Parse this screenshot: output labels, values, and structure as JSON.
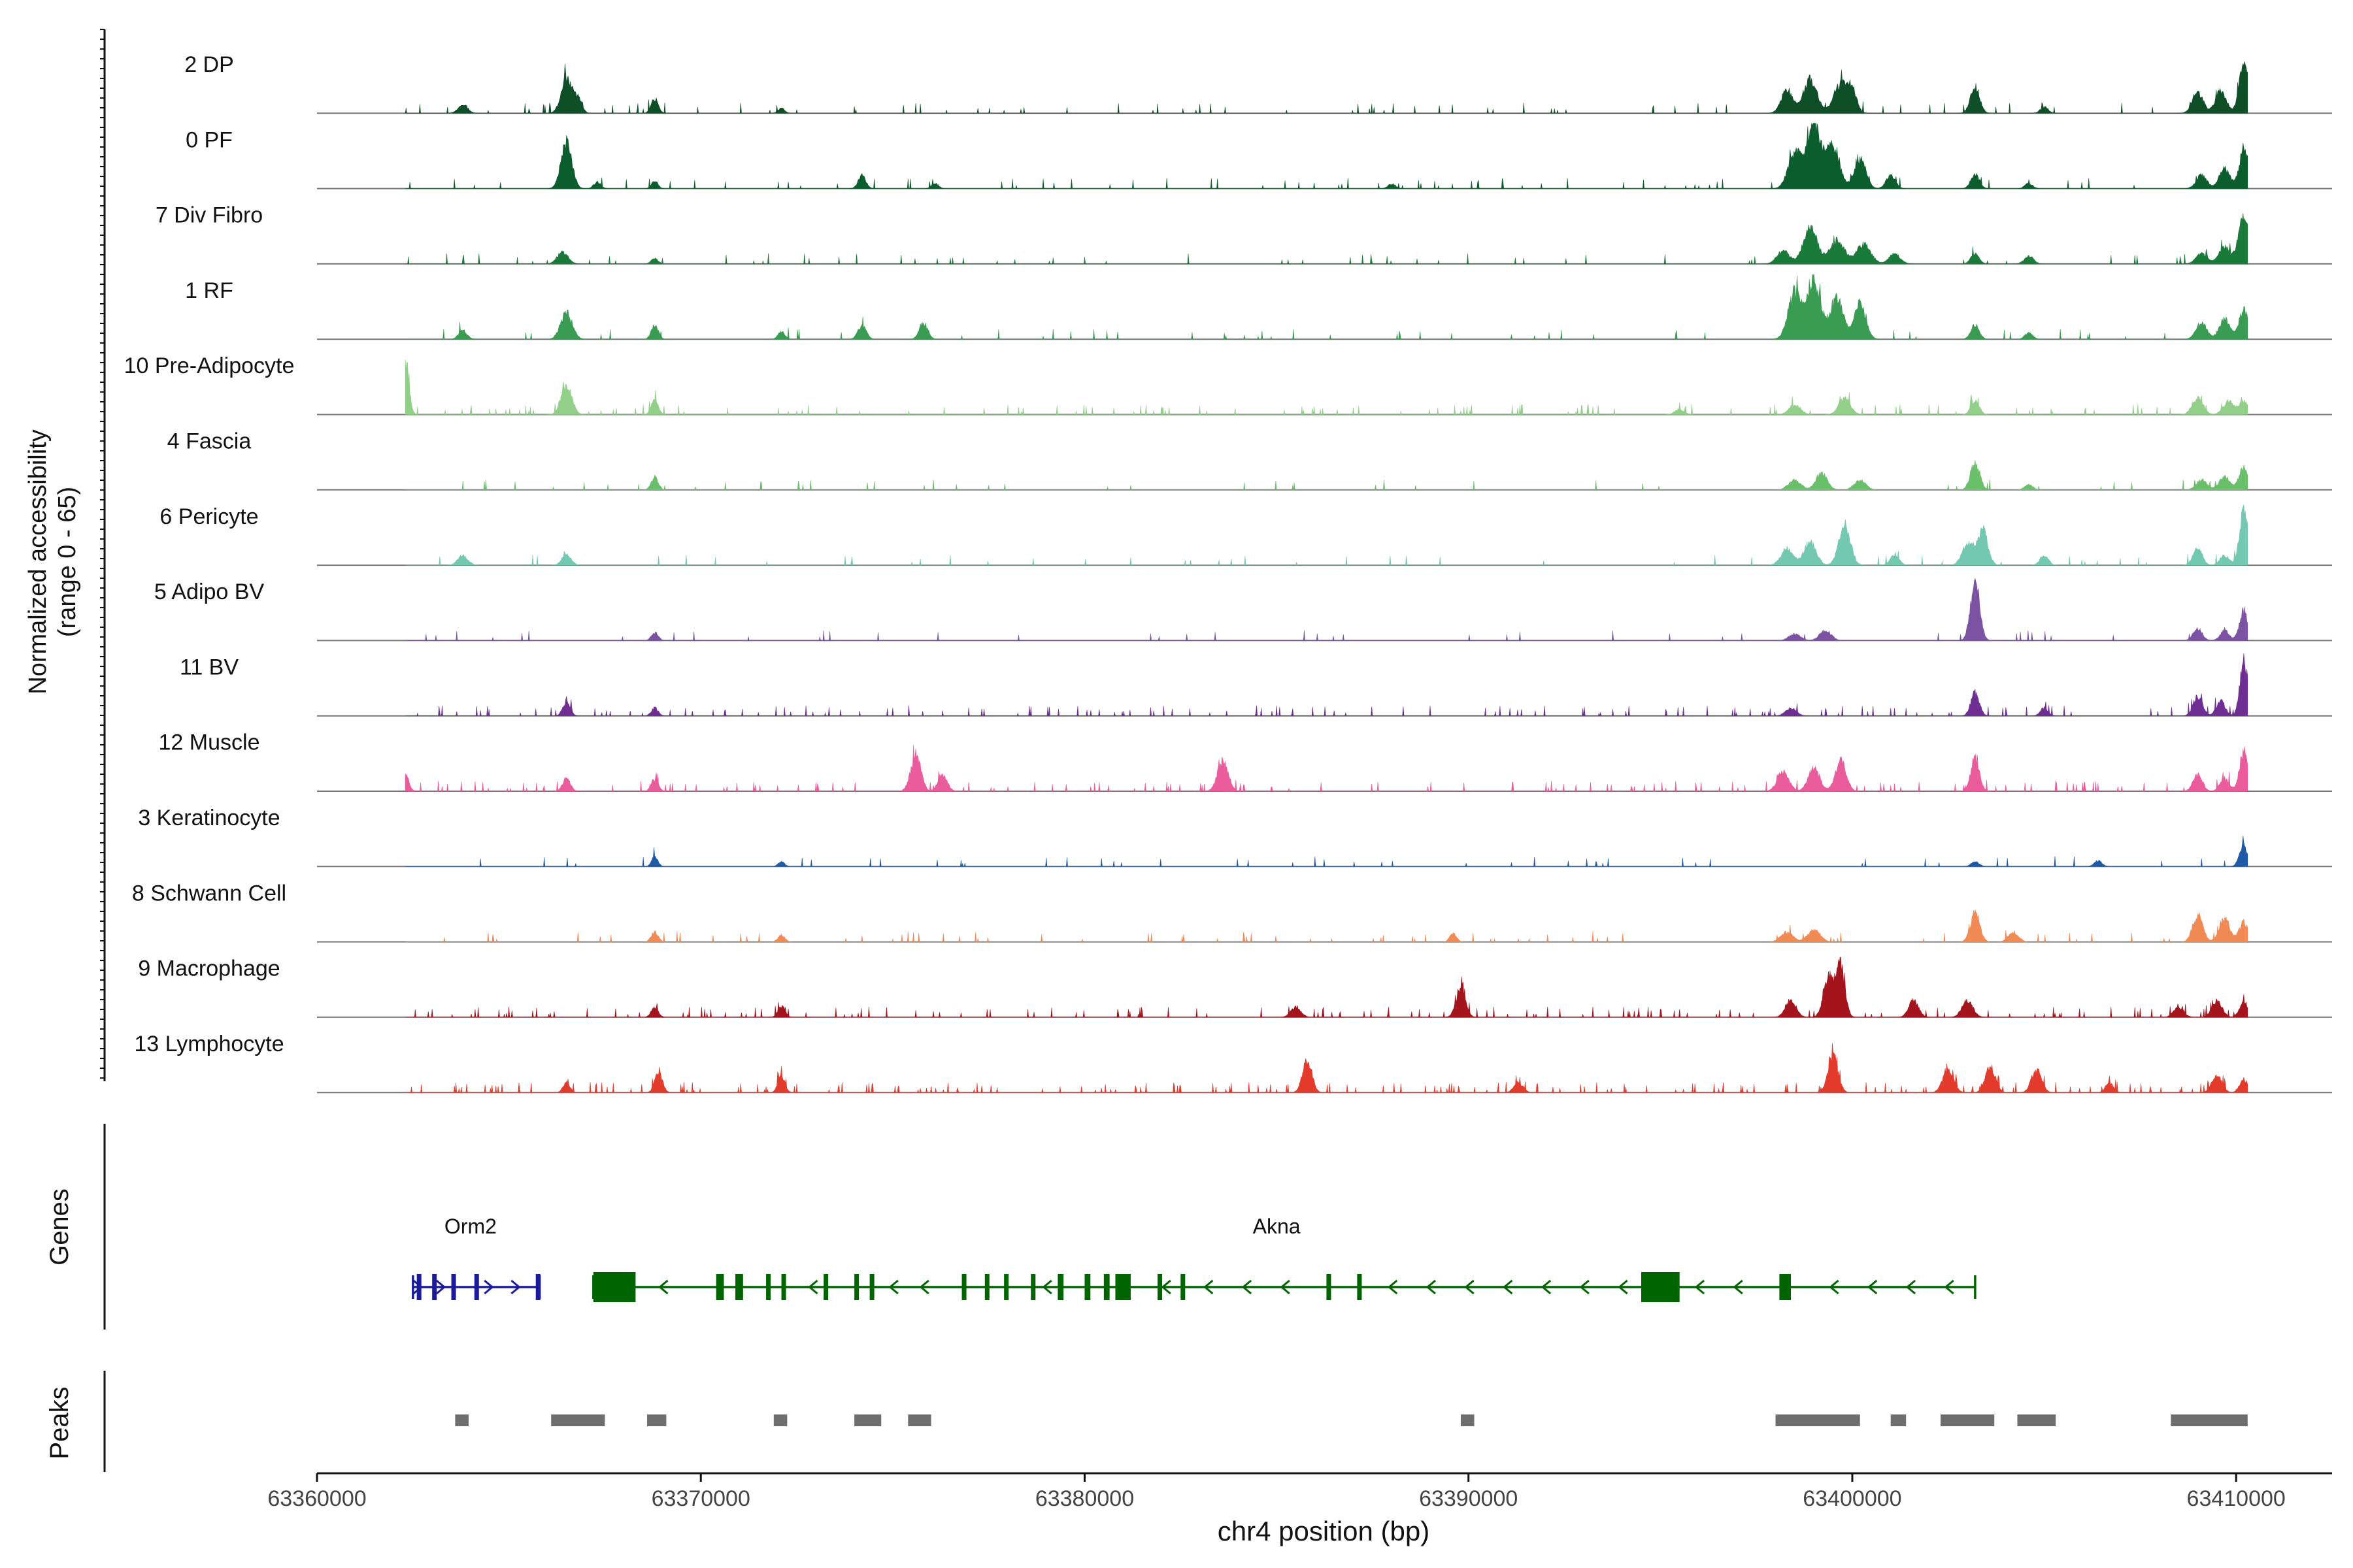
{
  "chart_data": {
    "type": "area",
    "title": "",
    "xlabel": "chr4 position (bp)",
    "ylabel_line1": "Normalized accessibility",
    "ylabel_line2": "(range 0 - 65)",
    "ylim": [
      0,
      65
    ],
    "xlim": [
      63360000,
      63412500
    ],
    "xticks": [
      63360000,
      63370000,
      63380000,
      63390000,
      63400000,
      63410000
    ],
    "xtick_labels": [
      "63360000",
      "63370000",
      "63380000",
      "63390000",
      "63400000",
      "63410000"
    ],
    "track_start": 63362300,
    "track_end": 63410300,
    "series": [
      {
        "name": "2 DP",
        "color": "#0f4f28",
        "noise": 0.035,
        "peaks": [
          [
            63363800,
            0.14,
            120
          ],
          [
            63366500,
            0.55,
            140
          ],
          [
            63366800,
            0.2,
            100
          ],
          [
            63368800,
            0.22,
            90
          ],
          [
            63372100,
            0.08,
            80
          ],
          [
            63398300,
            0.35,
            150
          ],
          [
            63398900,
            0.5,
            180
          ],
          [
            63399700,
            0.45,
            180
          ],
          [
            63400000,
            0.3,
            120
          ],
          [
            63403200,
            0.4,
            120
          ],
          [
            63405000,
            0.1,
            100
          ],
          [
            63409000,
            0.32,
            140
          ],
          [
            63409600,
            0.35,
            140
          ],
          [
            63410200,
            0.75,
            120
          ]
        ]
      },
      {
        "name": "0 PF",
        "color": "#0b5d2d",
        "noise": 0.03,
        "peaks": [
          [
            63366500,
            0.7,
            140
          ],
          [
            63367300,
            0.1,
            90
          ],
          [
            63368800,
            0.12,
            80
          ],
          [
            63374200,
            0.2,
            100
          ],
          [
            63376100,
            0.08,
            90
          ],
          [
            63388000,
            0.07,
            100
          ],
          [
            63398500,
            0.55,
            170
          ],
          [
            63399000,
            1.0,
            180
          ],
          [
            63399500,
            0.65,
            170
          ],
          [
            63400200,
            0.45,
            150
          ],
          [
            63401000,
            0.2,
            120
          ],
          [
            63403200,
            0.22,
            110
          ],
          [
            63404600,
            0.08,
            100
          ],
          [
            63409100,
            0.2,
            140
          ],
          [
            63409700,
            0.3,
            140
          ],
          [
            63410200,
            0.6,
            120
          ]
        ]
      },
      {
        "name": "7 Div Fibro",
        "color": "#1a7a3a",
        "noise": 0.035,
        "peaks": [
          [
            63366400,
            0.18,
            140
          ],
          [
            63368800,
            0.08,
            90
          ],
          [
            63398200,
            0.2,
            160
          ],
          [
            63398900,
            0.55,
            180
          ],
          [
            63399600,
            0.35,
            200
          ],
          [
            63400300,
            0.3,
            180
          ],
          [
            63401100,
            0.15,
            150
          ],
          [
            63403200,
            0.15,
            110
          ],
          [
            63404600,
            0.12,
            120
          ],
          [
            63409100,
            0.15,
            150
          ],
          [
            63409700,
            0.25,
            150
          ],
          [
            63410200,
            0.7,
            140
          ]
        ]
      },
      {
        "name": "1 RF",
        "color": "#3a9b52",
        "noise": 0.03,
        "peaks": [
          [
            63363800,
            0.13,
            110
          ],
          [
            63366500,
            0.4,
            150
          ],
          [
            63368800,
            0.22,
            90
          ],
          [
            63372100,
            0.12,
            90
          ],
          [
            63374200,
            0.2,
            110
          ],
          [
            63375800,
            0.25,
            110
          ],
          [
            63398500,
            0.7,
            170
          ],
          [
            63399000,
            0.85,
            180
          ],
          [
            63399600,
            0.6,
            170
          ],
          [
            63400200,
            0.55,
            150
          ],
          [
            63403200,
            0.22,
            110
          ],
          [
            63404600,
            0.1,
            100
          ],
          [
            63409100,
            0.25,
            140
          ],
          [
            63409700,
            0.3,
            140
          ],
          [
            63410200,
            0.45,
            120
          ]
        ]
      },
      {
        "name": "10 Pre-Adipocyte",
        "color": "#92d08a",
        "noise": 0.05,
        "peaks": [
          [
            63362300,
            0.85,
            90
          ],
          [
            63366500,
            0.45,
            140
          ],
          [
            63368800,
            0.22,
            90
          ],
          [
            63395500,
            0.08,
            120
          ],
          [
            63398500,
            0.15,
            150
          ],
          [
            63399800,
            0.25,
            150
          ],
          [
            63403200,
            0.2,
            110
          ],
          [
            63409000,
            0.25,
            140
          ],
          [
            63409800,
            0.2,
            140
          ],
          [
            63410200,
            0.2,
            120
          ]
        ]
      },
      {
        "name": "4 Fascia",
        "color": "#6abf6a",
        "noise": 0.025,
        "peaks": [
          [
            63368800,
            0.2,
            90
          ],
          [
            63398500,
            0.15,
            160
          ],
          [
            63399200,
            0.25,
            150
          ],
          [
            63400200,
            0.15,
            150
          ],
          [
            63403200,
            0.42,
            120
          ],
          [
            63404600,
            0.08,
            110
          ],
          [
            63409100,
            0.15,
            140
          ],
          [
            63409700,
            0.2,
            140
          ],
          [
            63410200,
            0.35,
            120
          ]
        ]
      },
      {
        "name": "6 Pericyte",
        "color": "#72c8b0",
        "noise": 0.025,
        "peaks": [
          [
            63363800,
            0.15,
            130
          ],
          [
            63366500,
            0.17,
            120
          ],
          [
            63398300,
            0.25,
            160
          ],
          [
            63398900,
            0.35,
            160
          ],
          [
            63399800,
            0.6,
            150
          ],
          [
            63401100,
            0.15,
            120
          ],
          [
            63403000,
            0.35,
            140
          ],
          [
            63403400,
            0.55,
            130
          ],
          [
            63405000,
            0.15,
            110
          ],
          [
            63409000,
            0.25,
            120
          ],
          [
            63409700,
            0.15,
            120
          ],
          [
            63410200,
            0.85,
            110
          ]
        ]
      },
      {
        "name": "5 Adipo BV",
        "color": "#7c52a2",
        "noise": 0.02,
        "peaks": [
          [
            63368800,
            0.12,
            90
          ],
          [
            63398500,
            0.1,
            150
          ],
          [
            63399300,
            0.15,
            150
          ],
          [
            63403200,
            0.85,
            120
          ],
          [
            63409000,
            0.18,
            120
          ],
          [
            63409700,
            0.15,
            120
          ],
          [
            63410200,
            0.45,
            110
          ]
        ]
      },
      {
        "name": "11 BV",
        "color": "#6f2f92",
        "noise": 0.06,
        "peaks": [
          [
            63366500,
            0.2,
            100
          ],
          [
            63368800,
            0.12,
            90
          ],
          [
            63398400,
            0.12,
            140
          ],
          [
            63403200,
            0.35,
            110
          ],
          [
            63405000,
            0.12,
            100
          ],
          [
            63409000,
            0.3,
            120
          ],
          [
            63409600,
            0.22,
            120
          ],
          [
            63410200,
            0.85,
            100
          ]
        ]
      },
      {
        "name": "12 Muscle",
        "color": "#ea5c9b",
        "noise": 0.06,
        "peaks": [
          [
            63362300,
            0.25,
            90
          ],
          [
            63366500,
            0.2,
            100
          ],
          [
            63368800,
            0.18,
            90
          ],
          [
            63375600,
            0.55,
            130
          ],
          [
            63376300,
            0.25,
            120
          ],
          [
            63383600,
            0.45,
            140
          ],
          [
            63398200,
            0.3,
            150
          ],
          [
            63399000,
            0.35,
            150
          ],
          [
            63399700,
            0.45,
            140
          ],
          [
            63403200,
            0.5,
            110
          ],
          [
            63409000,
            0.25,
            120
          ],
          [
            63409700,
            0.2,
            120
          ],
          [
            63410200,
            0.6,
            110
          ]
        ]
      },
      {
        "name": "3 Keratinocyte",
        "color": "#1f5aa8",
        "noise": 0.025,
        "peaks": [
          [
            63368800,
            0.15,
            80
          ],
          [
            63372100,
            0.08,
            80
          ],
          [
            63403200,
            0.08,
            100
          ],
          [
            63406400,
            0.09,
            100
          ],
          [
            63410200,
            0.32,
            110
          ]
        ]
      },
      {
        "name": "8 Schwann Cell",
        "color": "#f28a55",
        "noise": 0.03,
        "peaks": [
          [
            63368800,
            0.15,
            90
          ],
          [
            63372100,
            0.1,
            90
          ],
          [
            63389600,
            0.12,
            90
          ],
          [
            63398300,
            0.15,
            160
          ],
          [
            63399000,
            0.18,
            160
          ],
          [
            63403200,
            0.45,
            120
          ],
          [
            63404200,
            0.15,
            130
          ],
          [
            63409000,
            0.4,
            130
          ],
          [
            63409700,
            0.35,
            140
          ],
          [
            63410200,
            0.3,
            120
          ]
        ]
      },
      {
        "name": "9 Macrophage",
        "color": "#a3141c",
        "noise": 0.07,
        "peaks": [
          [
            63368800,
            0.15,
            90
          ],
          [
            63372100,
            0.17,
            90
          ],
          [
            63385500,
            0.15,
            130
          ],
          [
            63389800,
            0.45,
            120
          ],
          [
            63398400,
            0.25,
            140
          ],
          [
            63399400,
            0.6,
            140
          ],
          [
            63399700,
            0.75,
            110
          ],
          [
            63401600,
            0.25,
            130
          ],
          [
            63403000,
            0.25,
            140
          ],
          [
            63408500,
            0.15,
            130
          ],
          [
            63409500,
            0.25,
            130
          ],
          [
            63410200,
            0.25,
            110
          ]
        ]
      },
      {
        "name": "13 Lymphocyte",
        "color": "#e23b2c",
        "noise": 0.09,
        "peaks": [
          [
            63366500,
            0.15,
            90
          ],
          [
            63368900,
            0.3,
            100
          ],
          [
            63372100,
            0.25,
            90
          ],
          [
            63385800,
            0.5,
            120
          ],
          [
            63391300,
            0.15,
            120
          ],
          [
            63399500,
            0.55,
            130
          ],
          [
            63402500,
            0.35,
            140
          ],
          [
            63403600,
            0.4,
            130
          ],
          [
            63404800,
            0.35,
            130
          ],
          [
            63406700,
            0.15,
            100
          ],
          [
            63409500,
            0.25,
            130
          ],
          [
            63410200,
            0.2,
            110
          ]
        ]
      }
    ],
    "genes": {
      "label": "Genes",
      "items": [
        {
          "name": "Orm2",
          "label_x": 63364000,
          "color": "#1a1a9a",
          "strand": "+",
          "start": 63362500,
          "end": 63365800,
          "exons": [
            [
              63362600,
              63362700
            ],
            [
              63363000,
              63363100
            ],
            [
              63363500,
              63363550
            ],
            [
              63364100,
              63364200
            ],
            [
              63365700,
              63365800
            ]
          ],
          "arrows": [
            63362650,
            63363250,
            63364500,
            63365200
          ]
        },
        {
          "name": "Akna",
          "label_x": 63385000,
          "color": "#006400",
          "strand": "-",
          "start": 63367200,
          "end": 63403200,
          "exons": [
            [
              63367200,
              63368300
            ],
            [
              63370400,
              63370600
            ],
            [
              63370900,
              63371100
            ],
            [
              63371700,
              63371800
            ],
            [
              63372100,
              63372200
            ],
            [
              63373200,
              63373300
            ],
            [
              63374000,
              63374100
            ],
            [
              63374400,
              63374500
            ],
            [
              63376800,
              63376900
            ],
            [
              63377400,
              63377500
            ],
            [
              63377900,
              63378000
            ],
            [
              63378600,
              63378700
            ],
            [
              63379300,
              63379450
            ],
            [
              63380000,
              63380150
            ],
            [
              63380500,
              63380650
            ],
            [
              63380800,
              63381200
            ],
            [
              63381900,
              63382000
            ],
            [
              63382500,
              63382600
            ],
            [
              63386300,
              63386400
            ],
            [
              63387100,
              63387200
            ],
            [
              63394500,
              63395500
            ],
            [
              63398100,
              63398400
            ]
          ],
          "arrows": [
            63369000,
            63372900,
            63375000,
            63375800,
            63379000,
            63382100,
            63383200,
            63384200,
            63385200,
            63388000,
            63389000,
            63390000,
            63391000,
            63392000,
            63393000,
            63394000,
            63396000,
            63397000,
            63399500,
            63400500,
            63401500,
            63402500
          ]
        }
      ]
    },
    "peaks": {
      "label": "Peaks",
      "regions": [
        [
          63363600,
          63363950
        ],
        [
          63366100,
          63367500
        ],
        [
          63368600,
          63369100
        ],
        [
          63371900,
          63372250
        ],
        [
          63374000,
          63374700
        ],
        [
          63375400,
          63376000
        ],
        [
          63389800,
          63390150
        ],
        [
          63398000,
          63400200
        ],
        [
          63401000,
          63401400
        ],
        [
          63402300,
          63403700
        ],
        [
          63404300,
          63405300
        ],
        [
          63408300,
          63410300
        ]
      ]
    }
  }
}
